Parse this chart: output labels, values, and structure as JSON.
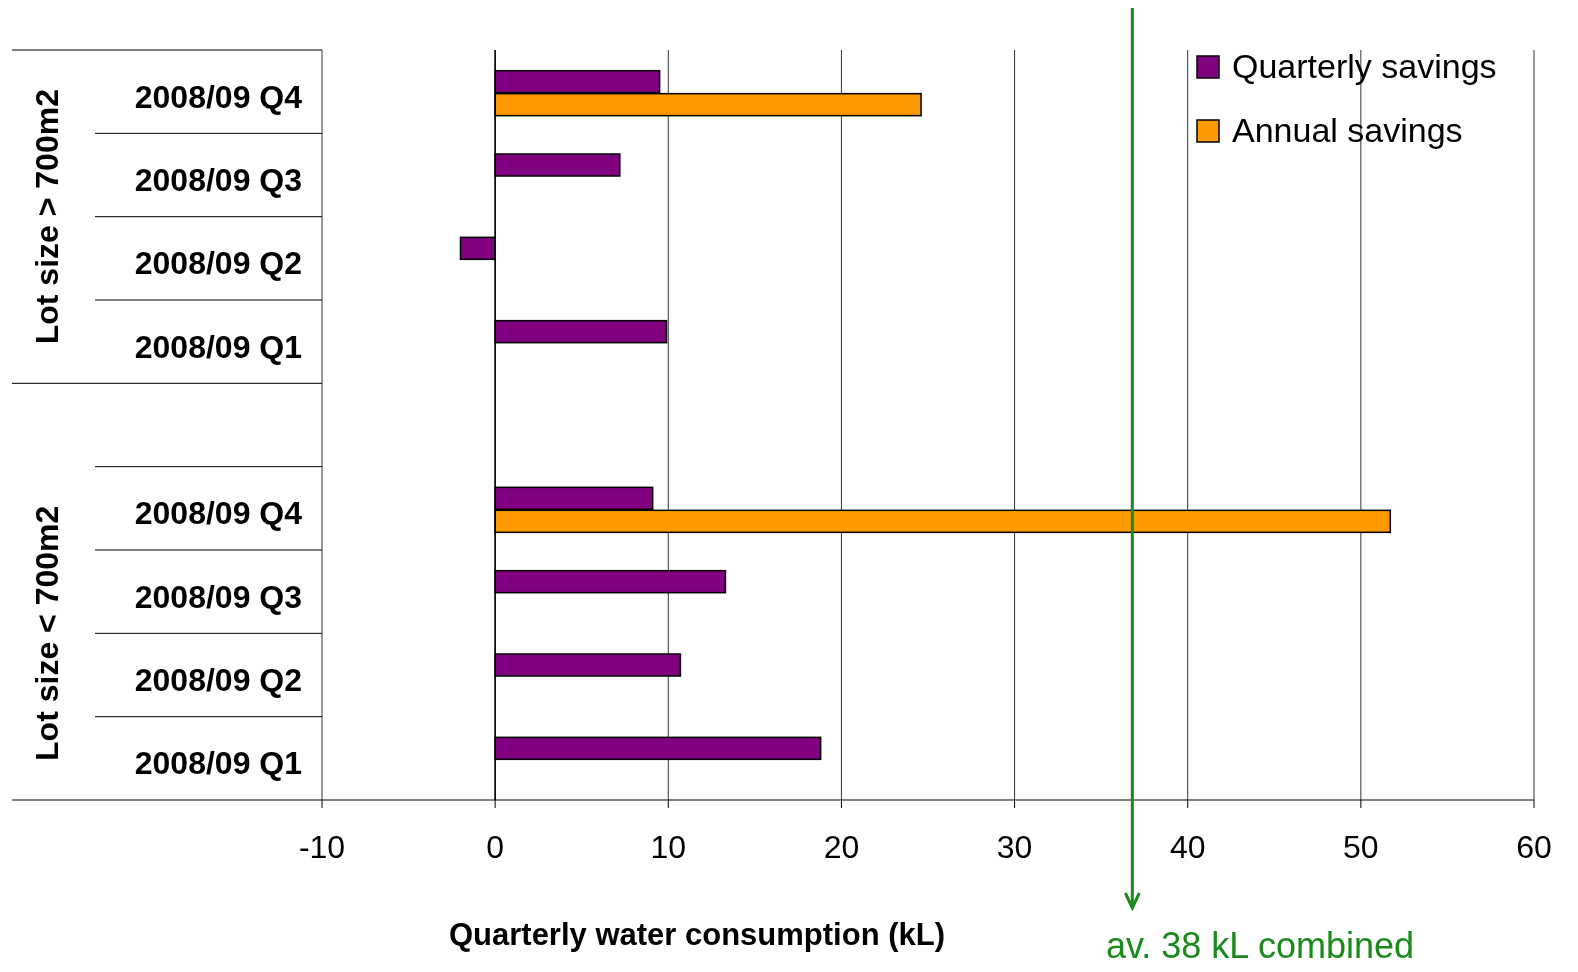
{
  "chart_data": {
    "type": "bar",
    "orientation": "horizontal",
    "xlabel": "Quarterly water consumption (kL)",
    "categories": [
      "2008/09 Q4",
      "2008/09 Q3",
      "2008/09 Q2",
      "2008/09 Q1",
      null,
      "2008/09 Q4",
      "2008/09 Q3",
      "2008/09 Q2",
      "2008/09 Q1"
    ],
    "series": [
      {
        "name": "Quarterly savings",
        "color": "#800080",
        "values": [
          9.5,
          7.2,
          -2.0,
          9.9,
          null,
          9.1,
          13.3,
          10.7,
          18.8
        ]
      },
      {
        "name": "Annual savings",
        "color": "#ff9900",
        "values": [
          24.6,
          null,
          null,
          null,
          null,
          51.7,
          null,
          null,
          null
        ]
      }
    ],
    "xlim": [
      -10,
      60
    ],
    "xticks": [
      -10,
      0,
      10,
      20,
      30,
      40,
      50,
      60
    ],
    "grid": "x",
    "legend": "top right",
    "ref_lines": [
      {
        "axis": "x",
        "value": 36.8,
        "label": "av. 38 kL combined",
        "color": "#1a8a1a"
      }
    ],
    "annotations": [
      "Lot size > 700m2",
      "Lot size < 700m2"
    ]
  }
}
